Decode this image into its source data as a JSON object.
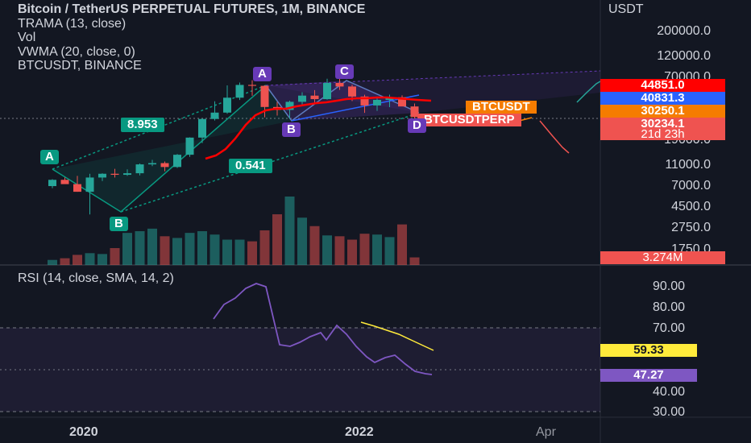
{
  "legend": {
    "title": "Bitcoin / TetherUS PERPETUAL FUTURES, 1M, BINANCE",
    "indicator1": "TRAMA (13, close)",
    "indicator2": "Vol",
    "indicator3": "VWMA (20, close, 0)",
    "compare": "BTCUSDT, BINANCE"
  },
  "rsi_legend": "RSI (14, close, SMA, 14, 2)",
  "price_axis": {
    "currency": "USDT",
    "ticks": [
      "200000.0",
      "120000.0",
      "70000.0",
      "19000.0",
      "11000.0",
      "7000.0",
      "4500.0",
      "2750.0",
      "1750.0"
    ],
    "scale": "log"
  },
  "rsi_axis": {
    "ticks": [
      "90.00",
      "80.00",
      "70.00",
      "40.00",
      "30.00"
    ],
    "band": [
      30,
      70
    ]
  },
  "price_tags": {
    "trama": "44851.0",
    "vwma": "40831.3",
    "btcusdt": "30250.1",
    "last": "30234.1",
    "countdown": "21d 23h",
    "volume": "3.274M"
  },
  "symbol_tags": {
    "btcusdt": "BTCUSDT",
    "perp": "BTCUSDTPERP"
  },
  "rsi_tags": {
    "sma": "59.33",
    "rsi": "47.27"
  },
  "time_axis": [
    "2020",
    "2022",
    "Apr"
  ],
  "pattern_points": {
    "a1": "A",
    "b1": "B",
    "a2": "A",
    "b2": "B",
    "c": "C",
    "d": "D"
  },
  "ratios": {
    "r1": "8.953",
    "r2": "0.541"
  },
  "colors": {
    "background": "#131722",
    "up": "#26a69a",
    "down": "#ef5350",
    "trama": "#ff0000",
    "vwma": "#2962ff",
    "rsi": "#7e57c2",
    "rsi_sma": "#ffeb3b",
    "pattern_green": "#089981",
    "pattern_purple": "#673ab7",
    "perp_orange": "#f57c00"
  },
  "chart_data": {
    "type": "candlestick",
    "series": [
      {
        "name": "BTCUSDT",
        "candles": [
          [
            7200,
            8300,
            6900,
            8200
          ],
          [
            8200,
            8600,
            7700,
            7500
          ],
          [
            7500,
            8900,
            6400,
            6400
          ],
          [
            6400,
            9300,
            4000,
            8600
          ],
          [
            8600,
            9400,
            8000,
            9300
          ],
          [
            9300,
            10300,
            8600,
            9100
          ],
          [
            9100,
            10200,
            8900,
            9400
          ],
          [
            9400,
            11500,
            9000,
            11300
          ],
          [
            11300,
            12400,
            10900,
            11600
          ],
          [
            11600,
            12000,
            9800,
            10700
          ],
          [
            10700,
            14000,
            10500,
            13800
          ],
          [
            13800,
            19800,
            13200,
            19700
          ],
          [
            19700,
            29300,
            17600,
            29000
          ],
          [
            29000,
            41900,
            28100,
            33100
          ],
          [
            33100,
            58300,
            32300,
            45100
          ],
          [
            45100,
            61700,
            43000,
            58800
          ],
          [
            58800,
            64800,
            47000,
            57700
          ],
          [
            57700,
            58400,
            30000,
            37200
          ],
          [
            37200,
            41300,
            31100,
            35000
          ],
          [
            35000,
            42400,
            29200,
            41400
          ],
          [
            41400,
            50500,
            37800,
            47100
          ],
          [
            47100,
            52800,
            39600,
            43800
          ],
          [
            43800,
            66900,
            43300,
            61300
          ],
          [
            61300,
            69000,
            53000,
            56900
          ],
          [
            56900,
            59100,
            42000,
            46200
          ],
          [
            46200,
            48000,
            32900,
            38400
          ],
          [
            38400,
            45800,
            34300,
            43100
          ],
          [
            43100,
            48100,
            37100,
            45500
          ],
          [
            45500,
            47400,
            37700,
            37600
          ],
          [
            37600,
            40000,
            26700,
            30200
          ]
        ]
      }
    ],
    "volume": "3.274M",
    "rsi": {
      "last": 47.27,
      "sma_last": 59.33,
      "range": [
        30,
        90
      ]
    }
  }
}
